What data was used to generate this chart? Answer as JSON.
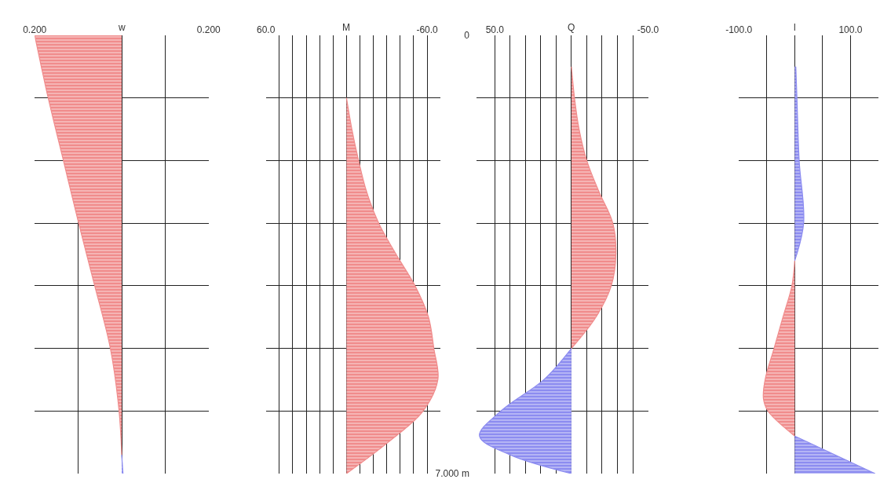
{
  "chart_data": [
    {
      "type": "area",
      "orientation": "horizontal",
      "xlabel": "w",
      "grid": true,
      "tick_labels": "x",
      "xlim": [
        -0.2,
        0.2
      ],
      "xticks": [
        {
          "value": -0.2,
          "label": "0.200"
        },
        {
          "value": -0.1,
          "label": null
        },
        {
          "value": 0,
          "label": null
        },
        {
          "value": 0.1,
          "label": null
        },
        {
          "value": 0.2,
          "label": "0.200"
        }
      ],
      "ylim": [
        7,
        0
      ],
      "yticks": [
        {
          "value": 0,
          "label": null
        },
        {
          "value": 1,
          "label": null
        },
        {
          "value": 2,
          "label": null
        },
        {
          "value": 3,
          "label": null
        },
        {
          "value": 4,
          "label": null
        },
        {
          "value": 5,
          "label": null
        },
        {
          "value": 6,
          "label": null
        },
        {
          "value": 7,
          "label": null
        }
      ],
      "series": [
        {
          "color": "#f08c8c",
          "x": [
            0,
            1,
            2,
            3,
            4,
            5,
            6,
            6.7
          ],
          "values": [
            -0.2,
            -0.169,
            -0.134,
            -0.099,
            -0.062,
            -0.026,
            -0.006,
            0
          ]
        },
        {
          "color": "#8c8cf0",
          "x": [
            6.7,
            7
          ],
          "values": [
            0,
            0.003
          ]
        }
      ]
    },
    {
      "type": "area",
      "orientation": "horizontal",
      "xlabel": "M",
      "grid": true,
      "tick_labels": "x",
      "xlim": [
        60,
        -70
      ],
      "xticks": [
        {
          "value": 60,
          "label": "60.0"
        },
        {
          "value": 50,
          "label": null
        },
        {
          "value": 40,
          "label": null
        },
        {
          "value": 30,
          "label": null
        },
        {
          "value": 20,
          "label": null
        },
        {
          "value": 10,
          "label": null
        },
        {
          "value": 0,
          "label": null
        },
        {
          "value": -10,
          "label": null
        },
        {
          "value": -20,
          "label": null
        },
        {
          "value": -30,
          "label": null
        },
        {
          "value": -40,
          "label": null
        },
        {
          "value": -50,
          "label": null
        },
        {
          "value": -60,
          "label": "-60.0"
        }
      ],
      "ylim": [
        7,
        0
      ],
      "yticks": [
        {
          "value": 0,
          "label": null
        },
        {
          "value": 1,
          "label": null
        },
        {
          "value": 2,
          "label": null
        },
        {
          "value": 3,
          "label": null
        },
        {
          "value": 4,
          "label": null
        },
        {
          "value": 5,
          "label": null
        },
        {
          "value": 6,
          "label": null
        },
        {
          "value": 7,
          "label": null
        }
      ],
      "series": [
        {
          "color": "#f08c8c",
          "x": [
            1,
            1.5,
            2,
            2.5,
            3,
            3.5,
            4,
            4.5,
            5,
            5.5,
            6,
            6.5,
            7
          ],
          "values": [
            0,
            -4,
            -9,
            -15,
            -24,
            -37,
            -51,
            -61,
            -65,
            -68,
            -57,
            -31,
            0
          ]
        }
      ]
    },
    {
      "type": "area",
      "orientation": "horizontal",
      "xlabel": "Q",
      "grid": true,
      "xlim": [
        62,
        -50
      ],
      "xticks": [
        {
          "value": 50,
          "label": "50.0"
        },
        {
          "value": 40,
          "label": null
        },
        {
          "value": 30,
          "label": null
        },
        {
          "value": 20,
          "label": null
        },
        {
          "value": 10,
          "label": null
        },
        {
          "value": 0,
          "label": null
        },
        {
          "value": -10,
          "label": null
        },
        {
          "value": -20,
          "label": null
        },
        {
          "value": -30,
          "label": null
        },
        {
          "value": -40,
          "label": null
        },
        {
          "value": -50,
          "label": "-50.0"
        }
      ],
      "ylim": [
        7,
        0
      ],
      "yticks": [
        {
          "value": 0,
          "label": "0"
        },
        {
          "value": 1,
          "label": null
        },
        {
          "value": 2,
          "label": null
        },
        {
          "value": 3,
          "label": null
        },
        {
          "value": 4,
          "label": null
        },
        {
          "value": 5,
          "label": null
        },
        {
          "value": 6,
          "label": null
        },
        {
          "value": 7,
          "label": "7.000 m"
        }
      ],
      "series": [
        {
          "color": "#f08c8c",
          "x": [
            0.5,
            1,
            1.5,
            2,
            2.5,
            3,
            3.5,
            4,
            4.5,
            5
          ],
          "values": [
            0,
            -2,
            -5,
            -10,
            -18,
            -27,
            -29,
            -26,
            -16,
            0
          ]
        },
        {
          "color": "#8c8cf0",
          "x": [
            5,
            5.5,
            6,
            6.4,
            6.7,
            7
          ],
          "values": [
            0,
            18,
            46,
            60,
            40,
            0
          ]
        }
      ]
    },
    {
      "type": "area",
      "orientation": "horizontal",
      "xlabel": "l",
      "grid": true,
      "tick_labels": "x",
      "xlim": [
        -100,
        150
      ],
      "xticks": [
        {
          "value": -100,
          "label": "-100.0"
        },
        {
          "value": -50,
          "label": null
        },
        {
          "value": 0,
          "label": null
        },
        {
          "value": 50,
          "label": null
        },
        {
          "value": 100,
          "label": "100.0"
        }
      ],
      "ylim": [
        7,
        0
      ],
      "yticks": [
        {
          "value": 0,
          "label": null
        },
        {
          "value": 1,
          "label": null
        },
        {
          "value": 2,
          "label": null
        },
        {
          "value": 3,
          "label": null
        },
        {
          "value": 4,
          "label": null
        },
        {
          "value": 5,
          "label": null
        },
        {
          "value": 6,
          "label": null
        },
        {
          "value": 7,
          "label": null
        }
      ],
      "series": [
        {
          "color": "#8c8cf0",
          "x": [
            0.5,
            1,
            2,
            3,
            3.6
          ],
          "values": [
            2,
            4,
            8,
            16,
            0
          ]
        },
        {
          "color": "#f08c8c",
          "x": [
            3.6,
            4,
            4.5,
            5,
            5.5,
            5.8,
            6,
            6.4
          ],
          "values": [
            0,
            -5,
            -21,
            -37,
            -53,
            -56,
            -48,
            0
          ]
        },
        {
          "color": "#8c8cf0",
          "x": [
            6.4,
            7
          ],
          "values": [
            0,
            144
          ]
        }
      ]
    }
  ]
}
